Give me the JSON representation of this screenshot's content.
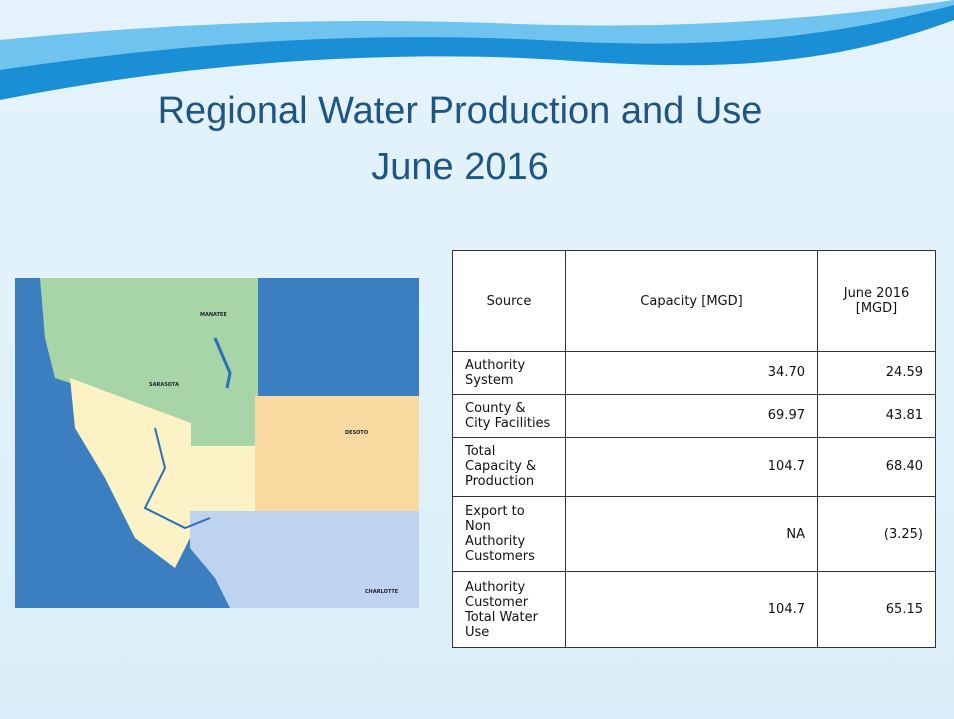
{
  "header": {
    "title_line1": "Regional Water Production and Use",
    "title_line2": "June 2016"
  },
  "map": {
    "labels": [
      "MANATEE",
      "SARASOTA",
      "DESOTO",
      "CHARLOTTE"
    ]
  },
  "table": {
    "columns": [
      "Source",
      "Capacity [MGD]",
      "June 2016 [MGD]"
    ],
    "rows": [
      [
        "Authority System",
        "34.70",
        "24.59"
      ],
      [
        "County & City Facilities",
        "69.97",
        "43.81"
      ],
      [
        "Total Capacity & Production",
        "104.7",
        "68.40"
      ],
      [
        "Export to Non Authority Customers",
        "NA",
        "(3.25)"
      ],
      [
        "Authority Customer Total Water Use",
        "104.7",
        "65.15"
      ]
    ]
  }
}
